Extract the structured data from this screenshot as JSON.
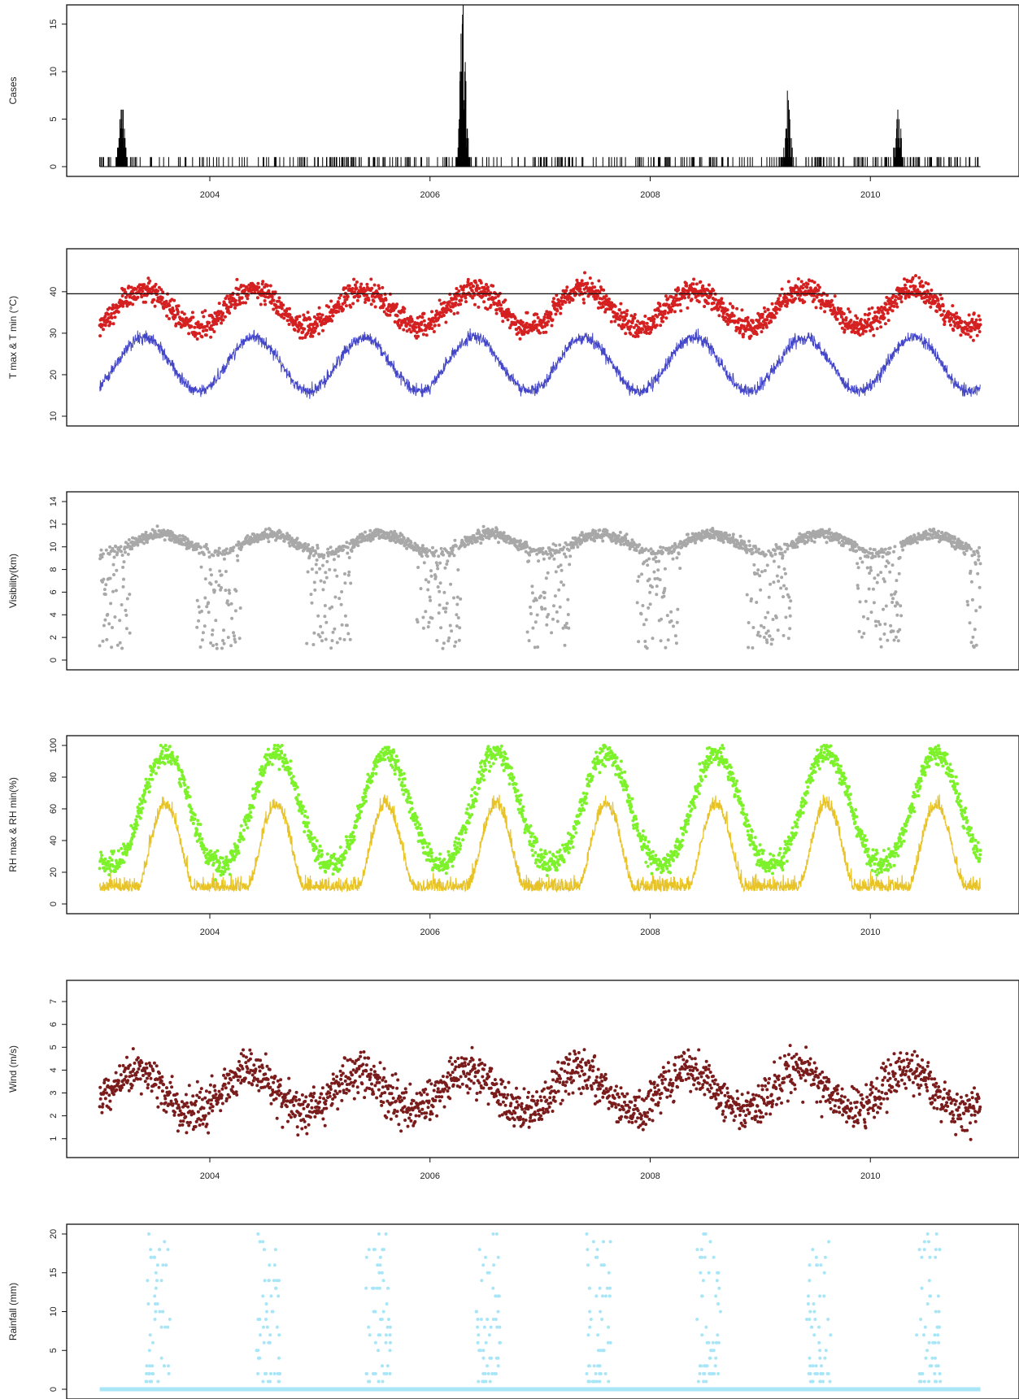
{
  "chart_data": [
    {
      "type": "line",
      "panel": "cases",
      "ylabel": "Cases",
      "ylim": [
        0,
        16
      ],
      "yticks": [
        "0",
        "5",
        "10",
        "15"
      ],
      "xticks": [
        "2004",
        "2006",
        "2008",
        "2010"
      ],
      "xlim": [
        2002.7,
        2011.35
      ],
      "data_range": [
        2003.0,
        2011.0
      ],
      "series": [
        {
          "values_kind": "daily counts",
          "color": "#000000"
        }
      ],
      "peaks": [
        {
          "x": 2003.2,
          "y": 6
        },
        {
          "x": 2006.3,
          "y": 16
        },
        {
          "x": 2009.25,
          "y": 7
        },
        {
          "x": 2010.25,
          "y": 6
        }
      ],
      "grid": false
    },
    {
      "type": "scatter",
      "panel": "temperature",
      "ylabel": "T max & T min (°C)",
      "ylim": [
        10,
        48
      ],
      "yticks": [
        "10",
        "20",
        "30",
        "40"
      ],
      "xlim": [
        2002.7,
        2011.35
      ],
      "reference_line": 39.5,
      "series": [
        {
          "kind": "points",
          "color": "#d42020",
          "mean": 36,
          "amplitude": 4.5,
          "noise": 4
        },
        {
          "kind": "line",
          "color": "#4446c8",
          "mean": 22.5,
          "amplitude": 6.5,
          "noise": 2.5
        }
      ],
      "grid": false
    },
    {
      "type": "scatter",
      "panel": "visibility",
      "ylabel": "Visibility(km)",
      "ylim": [
        0,
        14
      ],
      "yticks": [
        "0",
        "2",
        "4",
        "6",
        "8",
        "10",
        "12",
        "14"
      ],
      "xlim": [
        2002.7,
        2011.35
      ],
      "series": [
        {
          "kind": "points",
          "color": "#a8a8a8",
          "typical": 10.3,
          "dips_to": 1
        }
      ],
      "grid": false
    },
    {
      "type": "scatter",
      "panel": "humidity",
      "ylabel": "RH max & RH min(%)",
      "ylim": [
        0,
        100
      ],
      "yticks": [
        "0",
        "20",
        "40",
        "60",
        "80",
        "100"
      ],
      "xticks": [
        "2004",
        "2006",
        "2008",
        "2010"
      ],
      "xlim": [
        2002.7,
        2011.35
      ],
      "series": [
        {
          "kind": "points",
          "color": "#7df22a",
          "low": 25,
          "high": 95
        },
        {
          "kind": "line",
          "color": "#e8c328",
          "low": 8,
          "high": 60
        }
      ],
      "grid": false
    },
    {
      "type": "scatter",
      "panel": "wind",
      "ylabel": "Wind (m/s)",
      "ylim": [
        0.6,
        7.5
      ],
      "yticks": [
        "1",
        "2",
        "3",
        "4",
        "5",
        "6",
        "7"
      ],
      "xticks": [
        "2004",
        "2006",
        "2008",
        "2010"
      ],
      "xlim": [
        2002.7,
        2011.35
      ],
      "series": [
        {
          "kind": "points",
          "color": "#7a1c1c",
          "mean": 3.1,
          "amplitude": 0.9
        }
      ],
      "grid": false
    },
    {
      "type": "scatter",
      "panel": "rainfall",
      "ylabel": "Rainfall (mm)",
      "ylim": [
        0,
        20
      ],
      "yticks": [
        "0",
        "5",
        "10",
        "15",
        "20"
      ],
      "xlim": [
        2002.7,
        2011.35
      ],
      "series": [
        {
          "kind": "points",
          "color": "#a8e6f7",
          "baseline": 0,
          "wet_season_max": 20
        }
      ],
      "grid": false
    }
  ]
}
